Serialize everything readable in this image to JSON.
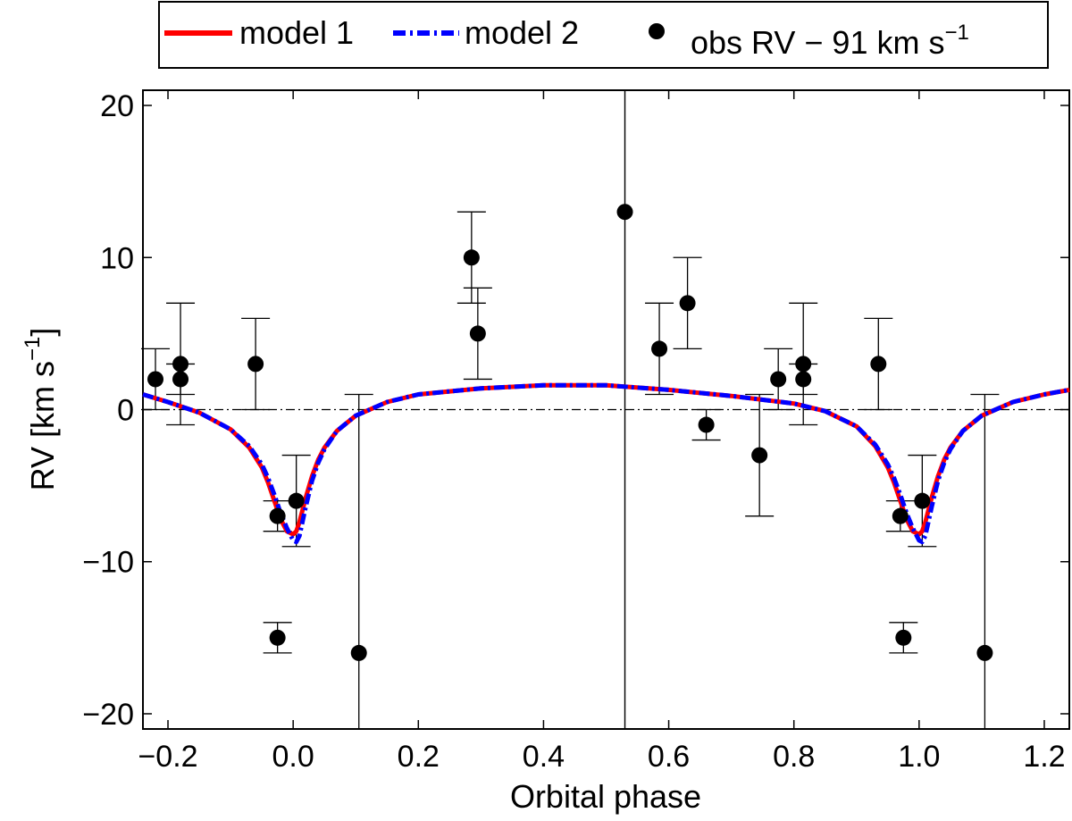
{
  "chart_data": {
    "type": "scatter",
    "xlabel": "Orbital phase",
    "ylabel": "RV [km s",
    "ylabel_suffix": "]",
    "ylabel_sup": "−1",
    "xlim": [
      -0.24,
      1.24
    ],
    "ylim": [
      -21,
      21
    ],
    "x_ticks": [
      -0.2,
      0.0,
      0.2,
      0.4,
      0.6,
      0.8,
      1.0,
      1.2
    ],
    "x_tick_labels": [
      "−0.2",
      "0.0",
      "0.2",
      "0.4",
      "0.6",
      "0.8",
      "1.0",
      "1.2"
    ],
    "y_ticks": [
      -20,
      -10,
      0,
      10,
      20
    ],
    "y_tick_labels": [
      "−20",
      "−10",
      "0",
      "10",
      "20"
    ],
    "reference_lines": {
      "horizontal_y": 0,
      "vertical_x": 0.53
    },
    "legend": {
      "position": "top",
      "entries": [
        {
          "label": "model 1",
          "style": "solid",
          "color": "#ff0000"
        },
        {
          "label": "model 2",
          "style": "dash-dot",
          "color": "#0000ff"
        },
        {
          "label": "obs RV − 91 km s",
          "sup": "−1",
          "style": "marker",
          "color": "#000000"
        }
      ]
    },
    "series": [
      {
        "name": "model 1",
        "color": "#ff0000",
        "x": [
          -0.24,
          -0.2,
          -0.15,
          -0.1,
          -0.07,
          -0.05,
          -0.04,
          -0.03,
          -0.02,
          -0.01,
          0.0,
          0.005,
          0.01,
          0.02,
          0.03,
          0.04,
          0.05,
          0.07,
          0.1,
          0.15,
          0.2,
          0.3,
          0.4,
          0.5,
          0.6,
          0.7,
          0.8,
          0.85,
          0.9,
          0.93,
          0.95,
          0.96,
          0.97,
          0.98,
          0.99,
          1.0,
          1.005,
          1.01,
          1.02,
          1.03,
          1.04,
          1.05,
          1.07,
          1.1,
          1.15,
          1.2,
          1.24
        ],
        "y": [
          1.0,
          0.5,
          -0.2,
          -1.3,
          -2.5,
          -3.8,
          -4.8,
          -6.0,
          -7.2,
          -8.0,
          -8.2,
          -8.0,
          -7.4,
          -5.8,
          -4.4,
          -3.3,
          -2.5,
          -1.4,
          -0.4,
          0.5,
          1.0,
          1.4,
          1.6,
          1.6,
          1.3,
          0.9,
          0.4,
          -0.1,
          -1.1,
          -2.4,
          -3.8,
          -4.8,
          -6.0,
          -7.2,
          -8.0,
          -8.2,
          -8.0,
          -7.4,
          -5.8,
          -4.4,
          -3.3,
          -2.5,
          -1.4,
          -0.4,
          0.5,
          1.0,
          1.3
        ]
      },
      {
        "name": "model 2",
        "color": "#0000ff",
        "x": [
          -0.24,
          -0.2,
          -0.15,
          -0.1,
          -0.07,
          -0.05,
          -0.04,
          -0.03,
          -0.02,
          -0.01,
          0.0,
          0.005,
          0.01,
          0.02,
          0.03,
          0.04,
          0.05,
          0.07,
          0.1,
          0.15,
          0.2,
          0.3,
          0.4,
          0.5,
          0.6,
          0.7,
          0.8,
          0.85,
          0.9,
          0.93,
          0.95,
          0.96,
          0.97,
          0.98,
          0.99,
          1.0,
          1.005,
          1.01,
          1.02,
          1.03,
          1.04,
          1.05,
          1.07,
          1.1,
          1.15,
          1.2,
          1.24
        ],
        "y": [
          1.0,
          0.5,
          -0.2,
          -1.3,
          -2.4,
          -3.6,
          -4.5,
          -5.6,
          -6.8,
          -7.8,
          -8.6,
          -8.7,
          -8.3,
          -6.4,
          -4.7,
          -3.5,
          -2.6,
          -1.4,
          -0.4,
          0.5,
          1.0,
          1.4,
          1.6,
          1.6,
          1.3,
          0.9,
          0.4,
          -0.1,
          -1.1,
          -2.3,
          -3.6,
          -4.5,
          -5.6,
          -6.8,
          -7.8,
          -8.6,
          -8.7,
          -8.3,
          -6.4,
          -4.7,
          -3.5,
          -2.6,
          -1.4,
          -0.4,
          0.5,
          1.0,
          1.3
        ]
      },
      {
        "name": "obs RV − 91 km s−1",
        "color": "#000000",
        "points": [
          {
            "x": -0.22,
            "y": 2,
            "err": 2
          },
          {
            "x": -0.18,
            "y": 3,
            "err": 4
          },
          {
            "x": -0.18,
            "y": 2,
            "err": 1
          },
          {
            "x": -0.06,
            "y": 3,
            "err": 3
          },
          {
            "x": -0.025,
            "y": -7,
            "err": 1
          },
          {
            "x": -0.025,
            "y": -15,
            "err": 1
          },
          {
            "x": 0.005,
            "y": -6,
            "err": 3
          },
          {
            "x": 0.105,
            "y": -16,
            "err": 17
          },
          {
            "x": 0.285,
            "y": 10,
            "err": 3
          },
          {
            "x": 0.295,
            "y": 5,
            "err": 3
          },
          {
            "x": 0.53,
            "y": 13,
            "err": 34
          },
          {
            "x": 0.585,
            "y": 4,
            "err": 3
          },
          {
            "x": 0.63,
            "y": 7,
            "err": 3
          },
          {
            "x": 0.66,
            "y": -1,
            "err": 1
          },
          {
            "x": 0.745,
            "y": -3,
            "err": 4
          },
          {
            "x": 0.775,
            "y": 2,
            "err": 2
          },
          {
            "x": 0.815,
            "y": 3,
            "err": 4
          },
          {
            "x": 0.815,
            "y": 2,
            "err": 1
          },
          {
            "x": 0.935,
            "y": 3,
            "err": 3
          },
          {
            "x": 0.97,
            "y": -7,
            "err": 1
          },
          {
            "x": 0.975,
            "y": -15,
            "err": 1
          },
          {
            "x": 1.005,
            "y": -6,
            "err": 3
          },
          {
            "x": 1.105,
            "y": -16,
            "err": 17
          }
        ]
      }
    ]
  }
}
